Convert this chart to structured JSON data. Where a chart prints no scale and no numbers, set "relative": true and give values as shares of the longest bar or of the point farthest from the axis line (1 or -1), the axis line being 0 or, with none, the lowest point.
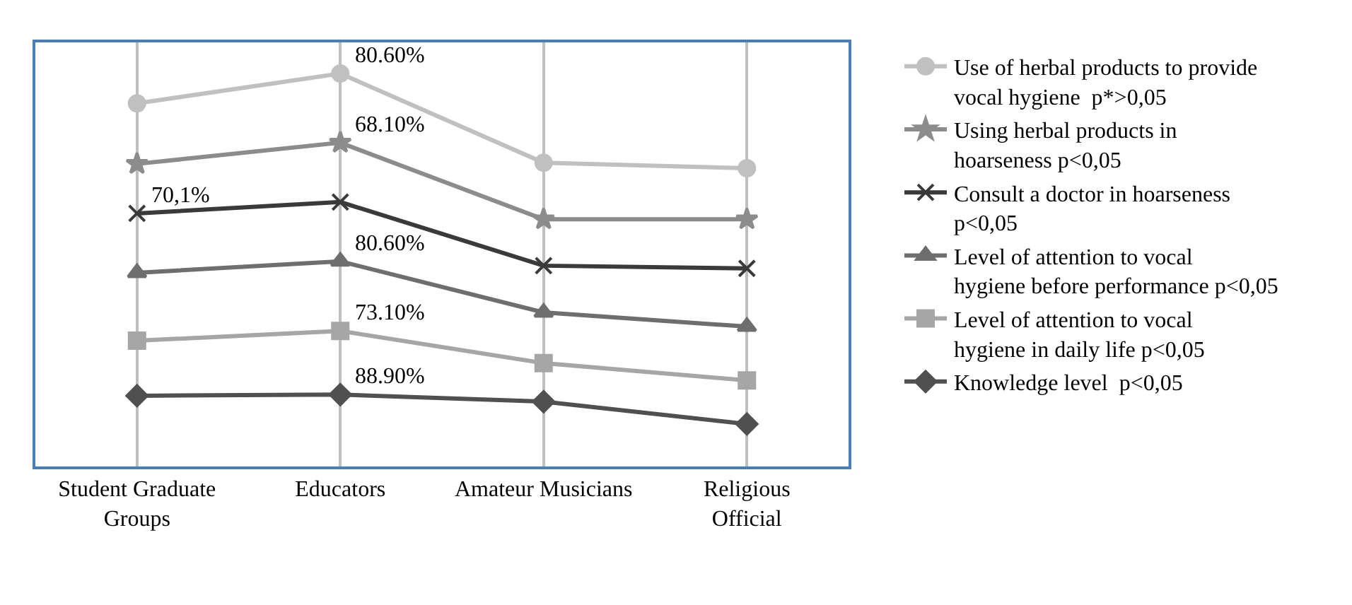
{
  "chart_data": {
    "type": "line",
    "relative": true,
    "grid": "x",
    "legend": "right",
    "categories": [
      "Student Graduate Groups",
      "Educators",
      "Amateur Musicians",
      "Religious Official"
    ],
    "series": [
      {
        "name": "Use of herbal products to provide vocal hygiene  p*>0,05",
        "color": "#c0c0c0",
        "marker": "circle",
        "values": [
          0.924,
          1,
          0.773,
          0.759
        ]
      },
      {
        "name": "Using herbal products in hoarseness p<0,05",
        "color": "#8c8c8c",
        "marker": "star",
        "values": [
          0.77,
          0.824,
          0.629,
          0.629
        ]
      },
      {
        "name": "Consult a doctor in hoarseness p<0,05",
        "color": "#3a3a3a",
        "marker": "cross",
        "values": [
          0.644,
          0.673,
          0.511,
          0.504
        ]
      },
      {
        "name": "Level of attention to vocal hygiene before performance p<0,05",
        "color": "#6e6e6e",
        "marker": "triangle",
        "values": [
          0.493,
          0.522,
          0.392,
          0.356
        ]
      },
      {
        "name": "Level of attention to vocal hygiene in daily life p<0,05",
        "color": "#a6a6a6",
        "marker": "square",
        "values": [
          0.32,
          0.345,
          0.263,
          0.219
        ]
      },
      {
        "name": "Knowledge level  p<0,05",
        "color": "#505050",
        "marker": "diamond",
        "values": [
          0.18,
          0.183,
          0.165,
          0.108
        ]
      }
    ],
    "annotations": [
      {
        "text": "80.60%",
        "x": "Educators",
        "y": 1
      },
      {
        "text": "68.10%",
        "x": "Educators",
        "y": 0.824
      },
      {
        "text": "70,1%",
        "x": "Student Graduate Groups",
        "y": 0.644
      },
      {
        "text": "80.60%",
        "x": "Educators",
        "y": 0.522
      },
      {
        "text": "73.10%",
        "x": "Educators",
        "y": 0.345
      },
      {
        "text": "88.90%",
        "x": "Educators",
        "y": 0.183
      }
    ]
  }
}
